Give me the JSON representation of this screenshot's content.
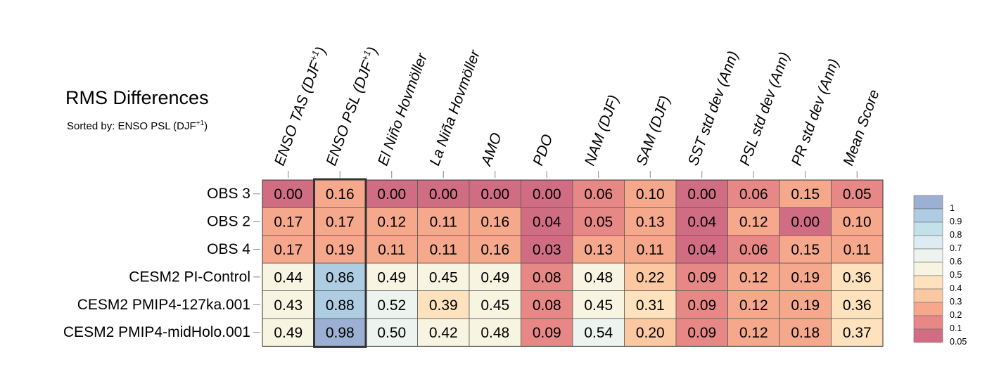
{
  "title": "RMS Differences",
  "subtitle": {
    "prefix": "Sorted by: ENSO PSL (DJF",
    "sup": "+1",
    "suffix": ")"
  },
  "chart_data": {
    "type": "heatmap",
    "columns": [
      {
        "text": "ENSO TAS (DJF",
        "sup": "+1",
        "tail": ")"
      },
      {
        "text": "ENSO PSL (DJF",
        "sup": "+1",
        "tail": ")"
      },
      {
        "text": "El Niño Hovmöller"
      },
      {
        "text": "La Niña Hovmöller"
      },
      {
        "text": "AMO"
      },
      {
        "text": "PDO"
      },
      {
        "text": "NAM (DJF)"
      },
      {
        "text": "SAM (DJF)"
      },
      {
        "text": "SST std dev (Ann)"
      },
      {
        "text": "PSL std dev (Ann)"
      },
      {
        "text": "PR std dev (Ann)"
      },
      {
        "text": "Mean Score"
      }
    ],
    "rows": [
      "OBS 3",
      "OBS 2",
      "OBS 4",
      "CESM2 PI-Control",
      "CESM2 PMIP4-127ka.001",
      "CESM2 PMIP4-midHolo.001"
    ],
    "values": [
      [
        "0.00",
        "0.16",
        "0.00",
        "0.00",
        "0.00",
        "0.00",
        "0.06",
        "0.10",
        "0.00",
        "0.06",
        "0.15",
        "0.05"
      ],
      [
        "0.17",
        "0.17",
        "0.12",
        "0.11",
        "0.16",
        "0.04",
        "0.05",
        "0.13",
        "0.04",
        "0.12",
        "0.00",
        "0.10"
      ],
      [
        "0.17",
        "0.19",
        "0.11",
        "0.11",
        "0.16",
        "0.03",
        "0.13",
        "0.11",
        "0.04",
        "0.06",
        "0.15",
        "0.11"
      ],
      [
        "0.44",
        "0.86",
        "0.49",
        "0.45",
        "0.49",
        "0.08",
        "0.48",
        "0.22",
        "0.09",
        "0.12",
        "0.19",
        "0.36"
      ],
      [
        "0.43",
        "0.88",
        "0.52",
        "0.39",
        "0.45",
        "0.08",
        "0.45",
        "0.31",
        "0.09",
        "0.12",
        "0.19",
        "0.36"
      ],
      [
        "0.49",
        "0.98",
        "0.50",
        "0.42",
        "0.48",
        "0.09",
        "0.54",
        "0.20",
        "0.09",
        "0.12",
        "0.18",
        "0.37"
      ]
    ],
    "highlighted_column_index": 1,
    "colorbar": {
      "labels": [
        "1",
        "0.9",
        "0.8",
        "0.7",
        "0.6",
        "0.5",
        "0.4",
        "0.3",
        "0.2",
        "0.1",
        "0.05"
      ],
      "colors": [
        "#9bb0d2",
        "#afcde2",
        "#c3e1ea",
        "#dcecf2",
        "#edf3ef",
        "#f8f4e2",
        "#fde2bd",
        "#fbc8a2",
        "#f5a88b",
        "#e88886",
        "#d16d83"
      ]
    }
  }
}
